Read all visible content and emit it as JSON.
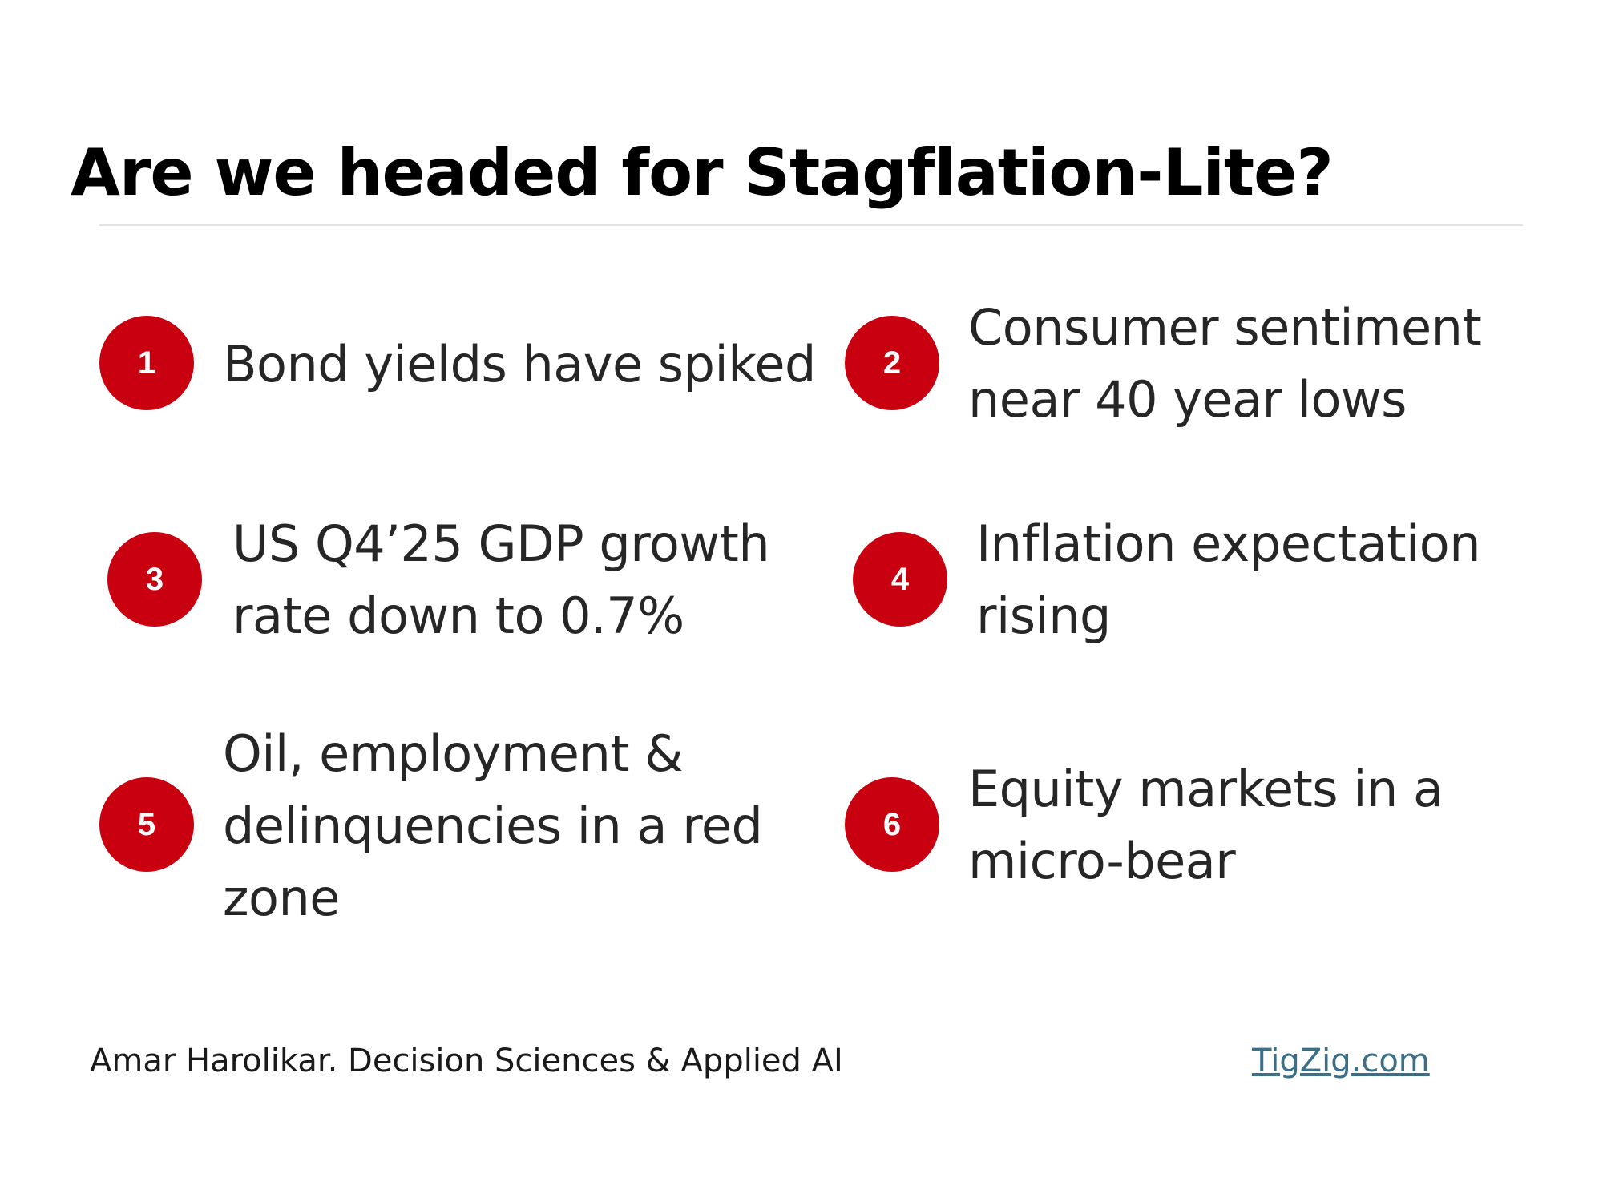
{
  "slide": {
    "title": "Are we headed for Stagflation-Lite?"
  },
  "points": [
    {
      "number": "1",
      "text": "Bond yields have spiked"
    },
    {
      "number": "2",
      "text": "Consumer sentiment near 40 year lows"
    },
    {
      "number": "3",
      "text": "US Q4’25 GDP growth rate down to 0.7%"
    },
    {
      "number": "4",
      "text": "Inflation expectation rising"
    },
    {
      "number": "5",
      "text": "Oil, employment & delinquencies in a red zone"
    },
    {
      "number": "6",
      "text": "Equity markets in a micro-bear"
    }
  ],
  "footer": {
    "credit": "Amar Harolikar. Decision Sciences & Applied AI",
    "link": "TigZig.com"
  },
  "colors": {
    "badge": "#c8000f",
    "link": "#3b6f88"
  }
}
